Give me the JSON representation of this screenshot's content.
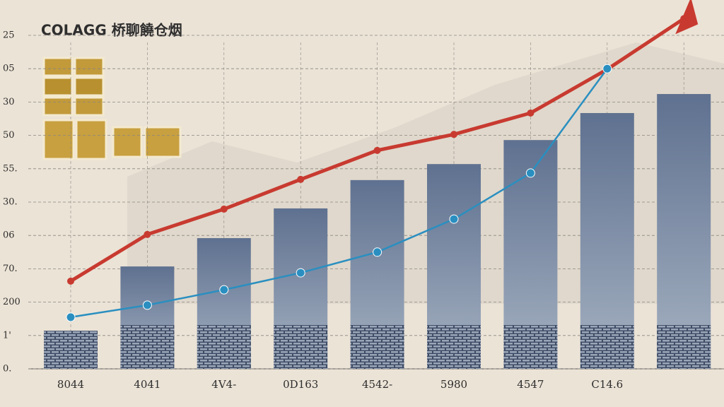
{
  "chart_data": {
    "type": "bar",
    "title": "COLAGG 桥聊饒仓烟",
    "categories": [
      "8044",
      "4041",
      "4V4-",
      "0D163",
      "4542-",
      "5980",
      "4547",
      "C14.6",
      null
    ],
    "values": [
      1.14,
      3.07,
      3.92,
      4.81,
      5.66,
      6.14,
      6.86,
      7.67,
      8.24
    ],
    "color": "#6f8099",
    "lines": [
      {
        "color": "#c83a30",
        "values": [
          2.63,
          4.03,
          4.79,
          5.68,
          6.55,
          7.03,
          7.67,
          8.98,
          10.5
        ]
      },
      {
        "color": "#2a8fc0",
        "values": [
          1.55,
          1.91,
          2.37,
          2.88,
          3.5,
          4.49,
          5.87,
          9.0,
          null
        ]
      }
    ],
    "ylim": [
      0,
      11
    ],
    "yticks": [
      {
        "value": 0,
        "label": "0."
      },
      {
        "value": 1,
        "label": "1'"
      },
      {
        "value": 2,
        "label": "200"
      },
      {
        "value": 3,
        "label": "70."
      },
      {
        "value": 4,
        "label": "06"
      },
      {
        "value": 5,
        "label": "30."
      },
      {
        "value": 6,
        "label": "55."
      },
      {
        "value": 7,
        "label": "50"
      },
      {
        "value": 8,
        "label": "30"
      },
      {
        "value": 9,
        "label": "05"
      },
      {
        "value": 10,
        "label": "25"
      }
    ],
    "grid": true
  }
}
